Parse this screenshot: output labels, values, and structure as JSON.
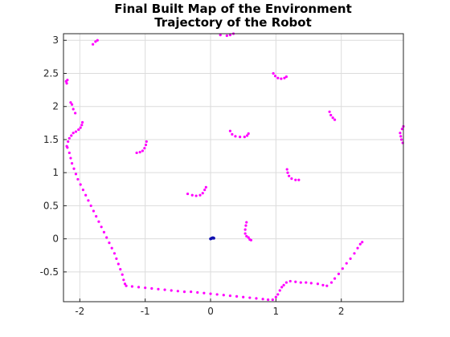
{
  "chart_data": {
    "type": "scatter",
    "title": "Final Built Map of the Environment",
    "subtitle": "Trajectory of the Robot",
    "xlabel": "",
    "ylabel": "",
    "xlim": [
      -2.25,
      2.95
    ],
    "ylim": [
      -0.95,
      3.1
    ],
    "xticks": [
      "-2",
      "-1",
      "0",
      "1",
      "2"
    ],
    "xtick_values": [
      -2,
      -1,
      0,
      1,
      2
    ],
    "yticks": [
      "-0.5",
      "0",
      "0.5",
      "1",
      "1.5",
      "2",
      "2.5",
      "3"
    ],
    "ytick_values": [
      -0.5,
      0,
      0.5,
      1,
      1.5,
      2,
      2.5,
      3
    ],
    "grid": true,
    "series": [
      {
        "color": "#ff00ff",
        "marker": "point",
        "points": [
          [
            -2.2,
            2.35
          ],
          [
            -2.21,
            2.38
          ],
          [
            -2.19,
            2.4
          ],
          [
            -2.2,
            1.4
          ],
          [
            -2.18,
            1.47
          ],
          [
            -2.16,
            1.52
          ],
          [
            -2.13,
            1.56
          ],
          [
            -2.1,
            1.6
          ],
          [
            -2.06,
            1.62
          ],
          [
            -2.02,
            1.65
          ],
          [
            -1.99,
            1.68
          ],
          [
            -1.97,
            1.72
          ],
          [
            -1.96,
            1.76
          ],
          [
            -2.14,
            2.06
          ],
          [
            -2.12,
            2.03
          ],
          [
            -2.1,
            1.96
          ],
          [
            -2.07,
            1.9
          ],
          [
            -2.19,
            1.38
          ],
          [
            -2.16,
            1.3
          ],
          [
            -2.14,
            1.22
          ],
          [
            -2.12,
            1.14
          ],
          [
            -2.09,
            1.06
          ],
          [
            -2.06,
            0.98
          ],
          [
            -2.03,
            0.9
          ],
          [
            -1.99,
            0.82
          ],
          [
            -1.95,
            0.74
          ],
          [
            -1.91,
            0.66
          ],
          [
            -1.87,
            0.58
          ],
          [
            -1.83,
            0.5
          ],
          [
            -1.79,
            0.42
          ],
          [
            -1.75,
            0.34
          ],
          [
            -1.71,
            0.26
          ],
          [
            -1.67,
            0.18
          ],
          [
            -1.63,
            0.1
          ],
          [
            -1.59,
            0.02
          ],
          [
            -1.55,
            -0.06
          ],
          [
            -1.51,
            -0.14
          ],
          [
            -1.47,
            -0.22
          ],
          [
            -1.44,
            -0.3
          ],
          [
            -1.41,
            -0.38
          ],
          [
            -1.38,
            -0.46
          ],
          [
            -1.35,
            -0.54
          ],
          [
            -1.33,
            -0.62
          ],
          [
            -1.31,
            -0.68
          ],
          [
            -1.29,
            -0.71
          ],
          [
            -1.2,
            -0.72
          ],
          [
            -1.1,
            -0.73
          ],
          [
            -1.0,
            -0.74
          ],
          [
            -0.9,
            -0.75
          ],
          [
            -0.8,
            -0.76
          ],
          [
            -0.7,
            -0.77
          ],
          [
            -0.6,
            -0.78
          ],
          [
            -0.5,
            -0.79
          ],
          [
            -0.4,
            -0.8
          ],
          [
            -0.3,
            -0.8
          ],
          [
            -0.2,
            -0.81
          ],
          [
            -0.1,
            -0.82
          ],
          [
            0.0,
            -0.83
          ],
          [
            0.1,
            -0.84
          ],
          [
            0.2,
            -0.85
          ],
          [
            0.3,
            -0.86
          ],
          [
            0.4,
            -0.87
          ],
          [
            0.5,
            -0.88
          ],
          [
            0.6,
            -0.89
          ],
          [
            0.7,
            -0.9
          ],
          [
            0.8,
            -0.91
          ],
          [
            0.88,
            -0.92
          ],
          [
            0.95,
            -0.92
          ],
          [
            1.0,
            -0.88
          ],
          [
            1.03,
            -0.84
          ],
          [
            1.06,
            -0.78
          ],
          [
            1.09,
            -0.73
          ],
          [
            1.12,
            -0.7
          ],
          [
            1.16,
            -0.66
          ],
          [
            1.22,
            -0.64
          ],
          [
            1.3,
            -0.65
          ],
          [
            1.38,
            -0.66
          ],
          [
            1.46,
            -0.66
          ],
          [
            1.54,
            -0.67
          ],
          [
            1.64,
            -0.68
          ],
          [
            1.72,
            -0.7
          ],
          [
            1.78,
            -0.71
          ],
          [
            1.85,
            -0.66
          ],
          [
            1.9,
            -0.6
          ],
          [
            1.96,
            -0.53
          ],
          [
            2.02,
            -0.45
          ],
          [
            2.08,
            -0.37
          ],
          [
            2.14,
            -0.3
          ],
          [
            2.2,
            -0.22
          ],
          [
            2.25,
            -0.14
          ],
          [
            2.29,
            -0.08
          ],
          [
            2.32,
            -0.05
          ],
          [
            -1.8,
            2.94
          ],
          [
            -1.76,
            2.98
          ],
          [
            -1.73,
            3.0
          ],
          [
            0.15,
            3.08
          ],
          [
            0.25,
            3.07
          ],
          [
            0.3,
            3.08
          ],
          [
            0.35,
            3.1
          ],
          [
            -1.13,
            1.3
          ],
          [
            -1.08,
            1.31
          ],
          [
            -1.04,
            1.33
          ],
          [
            -1.01,
            1.37
          ],
          [
            -0.99,
            1.42
          ],
          [
            -0.98,
            1.47
          ],
          [
            0.3,
            1.63
          ],
          [
            0.33,
            1.58
          ],
          [
            0.38,
            1.55
          ],
          [
            0.45,
            1.54
          ],
          [
            0.52,
            1.54
          ],
          [
            0.56,
            1.56
          ],
          [
            0.58,
            1.59
          ],
          [
            0.96,
            2.5
          ],
          [
            0.99,
            2.46
          ],
          [
            1.03,
            2.43
          ],
          [
            1.08,
            2.42
          ],
          [
            1.13,
            2.43
          ],
          [
            1.16,
            2.45
          ],
          [
            -0.35,
            0.68
          ],
          [
            -0.28,
            0.66
          ],
          [
            -0.22,
            0.65
          ],
          [
            -0.16,
            0.66
          ],
          [
            -0.12,
            0.69
          ],
          [
            -0.09,
            0.74
          ],
          [
            -0.07,
            0.78
          ],
          [
            1.17,
            1.05
          ],
          [
            1.18,
            1.0
          ],
          [
            1.2,
            0.95
          ],
          [
            1.24,
            0.91
          ],
          [
            1.3,
            0.89
          ],
          [
            1.35,
            0.89
          ],
          [
            1.82,
            1.92
          ],
          [
            1.84,
            1.87
          ],
          [
            1.87,
            1.83
          ],
          [
            1.9,
            1.8
          ],
          [
            2.9,
            1.6
          ],
          [
            2.91,
            1.55
          ],
          [
            2.92,
            1.5
          ],
          [
            2.94,
            1.45
          ],
          [
            2.96,
            1.42
          ],
          [
            2.97,
            1.38
          ],
          [
            2.95,
            1.7
          ],
          [
            2.93,
            1.66
          ],
          [
            0.55,
            0.25
          ],
          [
            0.54,
            0.2
          ],
          [
            0.53,
            0.14
          ],
          [
            0.53,
            0.08
          ],
          [
            0.55,
            0.04
          ],
          [
            0.58,
            0.02
          ],
          [
            0.6,
            -0.01
          ],
          [
            0.62,
            -0.02
          ]
        ]
      },
      {
        "color": "#1010b0",
        "marker": "point",
        "points": [
          [
            0.0,
            0.0
          ],
          [
            0.01,
            0.005
          ],
          [
            0.02,
            0.01
          ],
          [
            0.03,
            0.015
          ],
          [
            0.04,
            0.015
          ],
          [
            0.05,
            0.01
          ]
        ]
      }
    ]
  }
}
